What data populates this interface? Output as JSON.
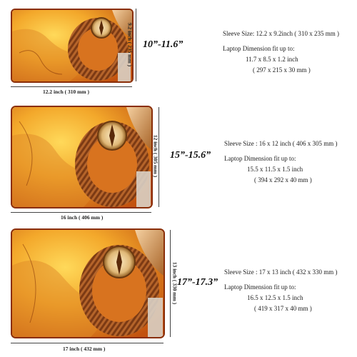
{
  "sizes": [
    {
      "label": "10”-11.6”",
      "width_dim": "12.2 inch ( 310 mm )",
      "height_dim": "9.2 inch ( 235 mm )",
      "sleeve_size": "Sleeve Size: 12.2 x 9.2inch ( 310 x 235 mm )",
      "fit_label": "Laptop Dimension fit up to:",
      "fit_inch": "11.7 x 8.5 x 1.2 inch",
      "fit_mm": "( 297 x 215 x 30 mm )"
    },
    {
      "label": "15”-15.6”",
      "width_dim": "16 inch ( 406 mm )",
      "height_dim": "12 inch ( 305 mm )",
      "sleeve_size": "Sleeve Size : 16 x 12 inch ( 406 x 305 mm )",
      "fit_label": "Laptop Dimension fit up to:",
      "fit_inch": "15.5 x 11.5 x 1.5 inch",
      "fit_mm": "( 394 x 292 x 40 mm )"
    },
    {
      "label": "17”-17.3”",
      "width_dim": "17 inch ( 432 mm )",
      "height_dim": "13 inch ( 330 mm )",
      "sleeve_size": "Sleeve Size : 17 x 13 inch ( 432 x 330 mm )",
      "fit_label": "Laptop Dimension fit up to:",
      "fit_inch": "16.5 x 12.5 x 1.5 inch",
      "fit_mm": "( 419 x 317 x 40 mm )"
    }
  ],
  "colors": {
    "gold": "#f4b23a",
    "orange": "#d9661a",
    "rope": "#a0522d",
    "trim": "#8a2e08"
  },
  "icons": [
    "compass-icon",
    "rope-icon",
    "world-map-icon",
    "telescope-icon"
  ]
}
